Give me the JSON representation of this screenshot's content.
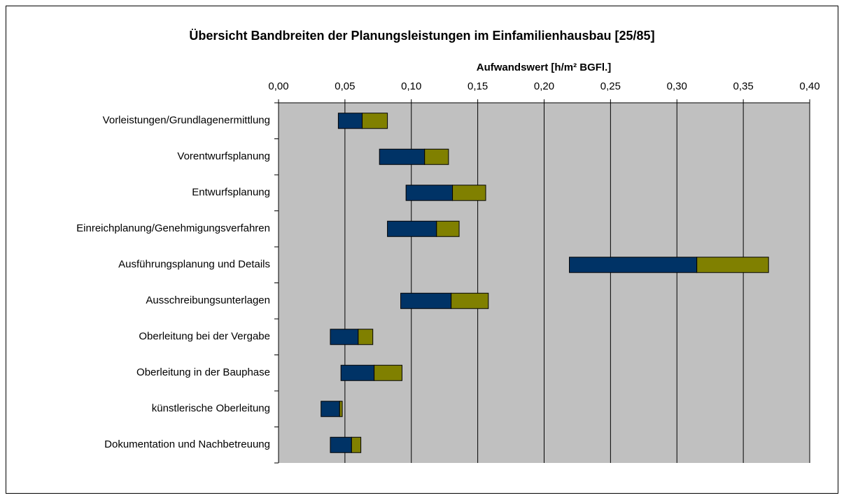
{
  "chart_data": {
    "type": "floating_bar",
    "title": "Übersicht Bandbreiten der Planungsleistungen im Einfamilienhausbau [25/85]",
    "x_label": "Aufwandswert [h/m² BGFl.]",
    "categories": [
      "Vorleistungen/Grundlagenermittlung",
      "Vorentwurfsplanung",
      "Entwurfsplanung",
      "Einreichplanung/Genehmigungsverfahren",
      "Ausführungsplanung und Details",
      "Ausschreibungsunterlagen",
      "Oberleitung bei der Vergabe",
      "Oberleitung in der Bauphase",
      "künstlerische Oberleitung",
      "Dokumentation und Nachbetreuung"
    ],
    "series": [
      {
        "color": "none",
        "values": [
          0.045,
          0.076,
          0.096,
          0.082,
          0.219,
          0.092,
          0.039,
          0.047,
          0.032,
          0.039
        ]
      },
      {
        "color": "#003366",
        "values": [
          0.018,
          0.034,
          0.035,
          0.037,
          0.096,
          0.038,
          0.021,
          0.025,
          0.014,
          0.016
        ]
      },
      {
        "color": "#808000",
        "values": [
          0.019,
          0.018,
          0.025,
          0.017,
          0.054,
          0.028,
          0.011,
          0.021,
          0.002,
          0.007
        ]
      }
    ],
    "xlim": [
      0,
      0.4
    ],
    "xticks": [
      {
        "value": 0,
        "label": "0,00"
      },
      {
        "value": 0.05,
        "label": "0,05"
      },
      {
        "value": 0.1,
        "label": "0,10"
      },
      {
        "value": 0.15,
        "label": "0,15"
      },
      {
        "value": 0.2,
        "label": "0,20"
      },
      {
        "value": 0.25,
        "label": "0,25"
      },
      {
        "value": 0.3,
        "label": "0,30"
      },
      {
        "value": 0.35,
        "label": "0,35"
      },
      {
        "value": 0.4,
        "label": "0,40"
      }
    ],
    "grid": true,
    "plot_background": "#c0c0c0"
  }
}
